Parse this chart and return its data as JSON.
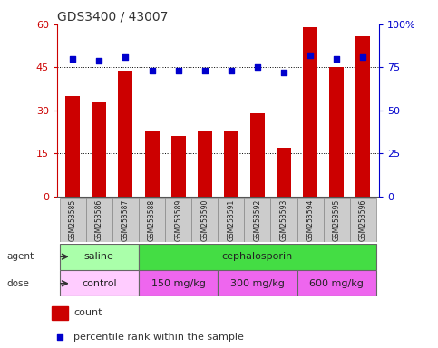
{
  "title": "GDS3400 / 43007",
  "samples": [
    "GSM253585",
    "GSM253586",
    "GSM253587",
    "GSM253588",
    "GSM253589",
    "GSM253590",
    "GSM253591",
    "GSM253592",
    "GSM253593",
    "GSM253594",
    "GSM253595",
    "GSM253596"
  ],
  "counts": [
    35,
    33,
    44,
    23,
    21,
    23,
    23,
    29,
    17,
    59,
    45,
    56
  ],
  "percentiles": [
    80,
    79,
    81,
    73,
    73,
    73,
    73,
    75,
    72,
    82,
    80,
    81
  ],
  "bar_color": "#cc0000",
  "dot_color": "#0000cc",
  "count_ylim": [
    0,
    60
  ],
  "count_yticks": [
    0,
    15,
    30,
    45,
    60
  ],
  "pct_ylim": [
    0,
    100
  ],
  "pct_yticks": [
    0,
    25,
    50,
    75,
    100
  ],
  "pct_yticklabels": [
    "0",
    "25",
    "50",
    "75",
    "100%"
  ],
  "agent_groups": [
    {
      "label": "saline",
      "start": 0,
      "end": 3,
      "color": "#aaffaa"
    },
    {
      "label": "cephalosporin",
      "start": 3,
      "end": 12,
      "color": "#44dd44"
    }
  ],
  "dose_groups": [
    {
      "label": "control",
      "start": 0,
      "end": 3,
      "color": "#ffccff"
    },
    {
      "label": "150 mg/kg",
      "start": 3,
      "end": 6,
      "color": "#ee66ee"
    },
    {
      "label": "300 mg/kg",
      "start": 6,
      "end": 9,
      "color": "#ee66ee"
    },
    {
      "label": "600 mg/kg",
      "start": 9,
      "end": 12,
      "color": "#ee66ee"
    }
  ],
  "legend_count_label": "count",
  "legend_pct_label": "percentile rank within the sample",
  "left_axis_color": "#cc0000",
  "right_axis_color": "#0000cc",
  "background_color": "#ffffff",
  "plot_bg_color": "#ffffff",
  "xticklabel_bg": "#cccccc",
  "bar_width": 0.55
}
